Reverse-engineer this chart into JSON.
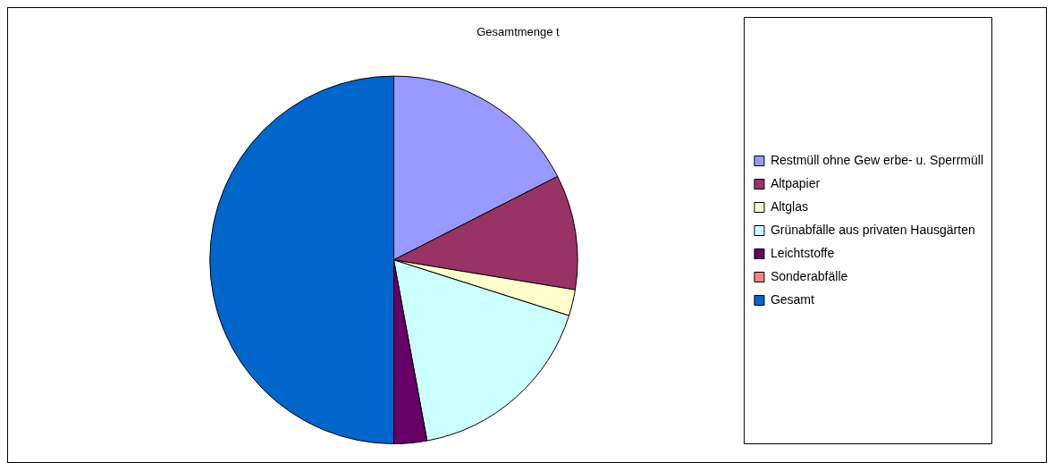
{
  "chart_data": {
    "type": "pie",
    "title": "Gesamtmenge t",
    "categories": [
      "Restmüll ohne Gew erbe- u. Sperrmüll",
      "Altpapier",
      "Altglas",
      "Grünabfälle aus privaten Hausgärten",
      "Leichtstoffe",
      "Sonderabfälle",
      "Gesamt"
    ],
    "values": [
      17.5,
      10.1,
      2.3,
      17.2,
      2.9,
      null,
      50
    ],
    "colors": [
      "#9999ff",
      "#993366",
      "#ffffcc",
      "#ccffff",
      "#660066",
      "#ff8080",
      "#0066cc"
    ],
    "legend": "right"
  }
}
